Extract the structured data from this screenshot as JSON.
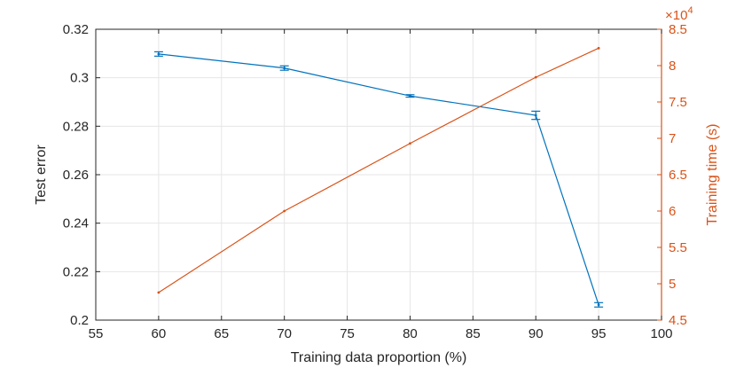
{
  "chart_data": {
    "type": "line",
    "xlabel": "Training data proportion (%)",
    "ylabel_left": "Test error",
    "ylabel_right": "Training time (s)",
    "right_axis_multiplier": "×10",
    "right_axis_exponent": "4",
    "xlim": [
      55,
      100
    ],
    "ylim_left": [
      0.2,
      0.32
    ],
    "ylim_right": [
      4.5,
      8.5
    ],
    "x_ticks": [
      55,
      60,
      65,
      70,
      75,
      80,
      85,
      90,
      95,
      100
    ],
    "y_left_ticks": [
      0.2,
      0.22,
      0.24,
      0.26,
      0.28,
      0.3,
      0.32
    ],
    "y_left_tick_labels": [
      "0.2",
      "0.22",
      "0.24",
      "0.26",
      "0.28",
      "0.3",
      "0.32"
    ],
    "y_right_ticks": [
      4.5,
      5,
      5.5,
      6,
      6.5,
      7,
      7.5,
      8,
      8.5
    ],
    "y_right_tick_labels": [
      "4.5",
      "5",
      "5.5",
      "6",
      "6.5",
      "7",
      "7.5",
      "8",
      "8.5"
    ],
    "grid": true,
    "colors": {
      "left": "#0072BD",
      "right": "#D95319",
      "axis": "#262626",
      "grid": "#e6e6e6"
    },
    "series": [
      {
        "axis": "left",
        "x": [
          60,
          70,
          80,
          90,
          95
        ],
        "values": [
          0.3098,
          0.304,
          0.2925,
          0.2845,
          0.2063
        ],
        "error": [
          0.0009,
          0.0009,
          0.0005,
          0.0017,
          0.0009
        ]
      },
      {
        "axis": "right",
        "x": [
          60,
          70,
          80,
          90,
          95
        ],
        "values": [
          4.88,
          6.0,
          6.93,
          7.84,
          8.24
        ]
      }
    ]
  }
}
